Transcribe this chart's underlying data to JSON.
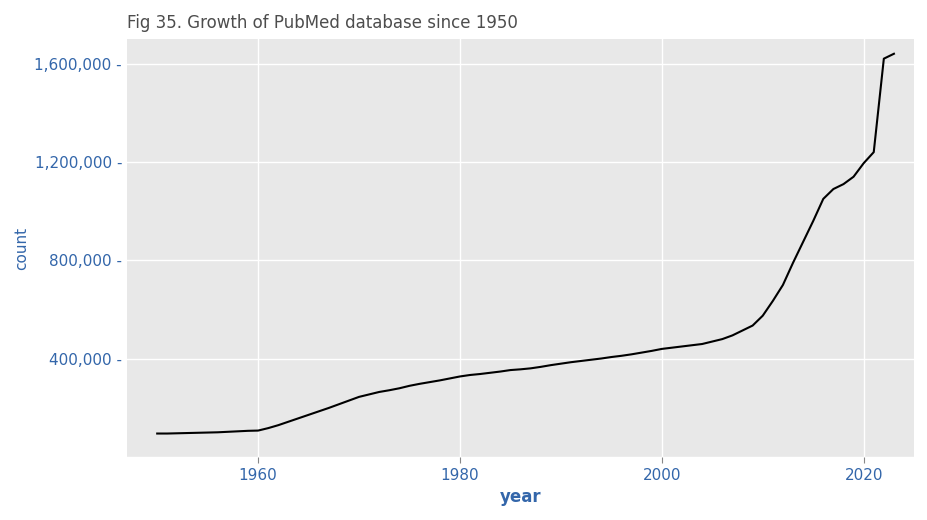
{
  "title": "Fig 35. Growth of PubMed database since 1950",
  "xlabel": "year",
  "ylabel": "count",
  "line_color": "#000000",
  "line_width": 1.5,
  "bg_color": "#e8e8e8",
  "outer_bg": "#ffffff",
  "grid_color": "#ffffff",
  "title_color": "#4d4d4d",
  "axis_label_color": "#3366aa",
  "tick_label_color": "#3366aa",
  "years": [
    1950,
    1951,
    1952,
    1953,
    1954,
    1955,
    1956,
    1957,
    1958,
    1959,
    1960,
    1961,
    1962,
    1963,
    1964,
    1965,
    1966,
    1967,
    1968,
    1969,
    1970,
    1971,
    1972,
    1973,
    1974,
    1975,
    1976,
    1977,
    1978,
    1979,
    1980,
    1981,
    1982,
    1983,
    1984,
    1985,
    1986,
    1987,
    1988,
    1989,
    1990,
    1991,
    1992,
    1993,
    1994,
    1995,
    1996,
    1997,
    1998,
    1999,
    2000,
    2001,
    2002,
    2003,
    2004,
    2005,
    2006,
    2007,
    2008,
    2009,
    2010,
    2011,
    2012,
    2013,
    2014,
    2015,
    2016,
    2017,
    2018,
    2019,
    2020,
    2021,
    2022,
    2023
  ],
  "counts": [
    96000,
    96000,
    97000,
    98000,
    99000,
    100000,
    101000,
    103000,
    105000,
    107000,
    108000,
    118000,
    130000,
    144000,
    158000,
    172000,
    186000,
    200000,
    215000,
    230000,
    245000,
    255000,
    265000,
    272000,
    280000,
    290000,
    298000,
    305000,
    312000,
    320000,
    328000,
    334000,
    338000,
    343000,
    348000,
    354000,
    357000,
    361000,
    367000,
    374000,
    380000,
    386000,
    391000,
    396000,
    401000,
    407000,
    412000,
    418000,
    425000,
    432000,
    440000,
    445000,
    450000,
    455000,
    460000,
    470000,
    480000,
    495000,
    515000,
    535000,
    575000,
    635000,
    700000,
    790000,
    875000,
    960000,
    1050000,
    1090000,
    1110000,
    1140000,
    1195000,
    1240000,
    1620000,
    1640000
  ],
  "xlim": [
    1947,
    2025
  ],
  "ylim": [
    0,
    1700000
  ],
  "xticks": [
    1960,
    1980,
    2000,
    2020
  ],
  "yticks": [
    0,
    400000,
    800000,
    1200000,
    1600000
  ],
  "ytick_labels": [
    "",
    "400,000 -",
    "800,000 -",
    "1,200,000 -",
    "1,600,000 -"
  ]
}
